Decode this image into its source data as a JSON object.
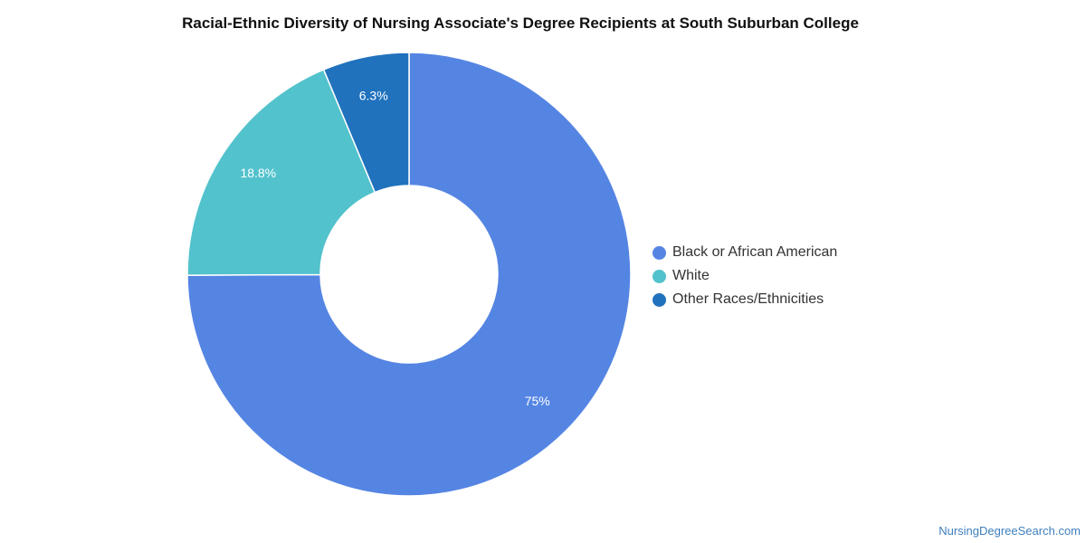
{
  "chart_data": {
    "type": "pie",
    "title": "Racial-Ethnic Diversity of Nursing Associate's Degree Recipients at South Suburban College",
    "donut": true,
    "legend_position": "right",
    "slices": [
      {
        "name": "Black or African American",
        "value": 75,
        "label": "75%",
        "color": "#5585e3"
      },
      {
        "name": "White",
        "value": 18.8,
        "label": "18.8%",
        "color": "#52c2cc"
      },
      {
        "name": "Other Races/Ethnicities",
        "value": 6.3,
        "label": "6.3%",
        "color": "#2072bd"
      }
    ]
  },
  "watermark": "NursingDegreeSearch.com"
}
